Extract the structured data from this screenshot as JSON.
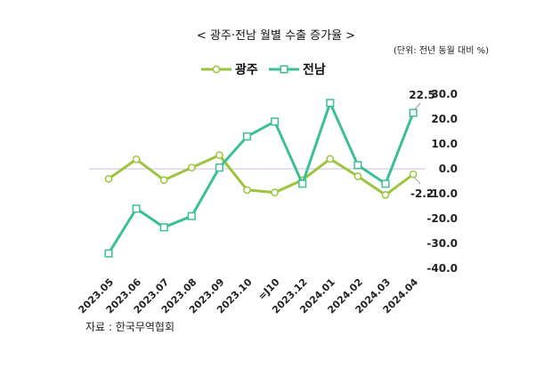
{
  "chart_data": {
    "type": "line",
    "title": "< 광주·전남 월별 수출 증가율 >",
    "unit_note": "(단위: 전년 동월 대비 %)",
    "categories": [
      "2023.05",
      "2023.06",
      "2023.07",
      "2023.08",
      "2023.09",
      "2023.10",
      "=J10",
      "2023.12",
      "2024.01",
      "2024.02",
      "2024.03",
      "2024.04"
    ],
    "series": [
      {
        "name": "광주",
        "color": "#9bc53d",
        "marker": "circle",
        "values": [
          -4.0,
          3.8,
          -4.5,
          0.5,
          5.5,
          -8.5,
          -9.5,
          -4.5,
          4.0,
          -3.0,
          -10.5,
          -2.2
        ]
      },
      {
        "name": "전남",
        "color": "#3cbf95",
        "marker": "square",
        "values": [
          -34.0,
          -16.0,
          -23.5,
          -19.0,
          0.5,
          13.0,
          19.0,
          -6.0,
          26.5,
          1.5,
          -6.0,
          22.5
        ]
      }
    ],
    "ylim": [
      -40,
      30
    ],
    "yticks": [
      "30.0",
      "20.0",
      "10.0",
      "0.0",
      "-10.0",
      "-20.0",
      "-30.0",
      "-40.0"
    ],
    "data_labels": [
      {
        "series": "전남",
        "index": 11,
        "text": "22.5"
      },
      {
        "series": "광주",
        "index": 11,
        "text": "-2.2"
      }
    ],
    "legend_position": "top-left",
    "grid": false,
    "zero_line_color": "#d9c7e8"
  },
  "source": "자료 : 한국무역협회"
}
